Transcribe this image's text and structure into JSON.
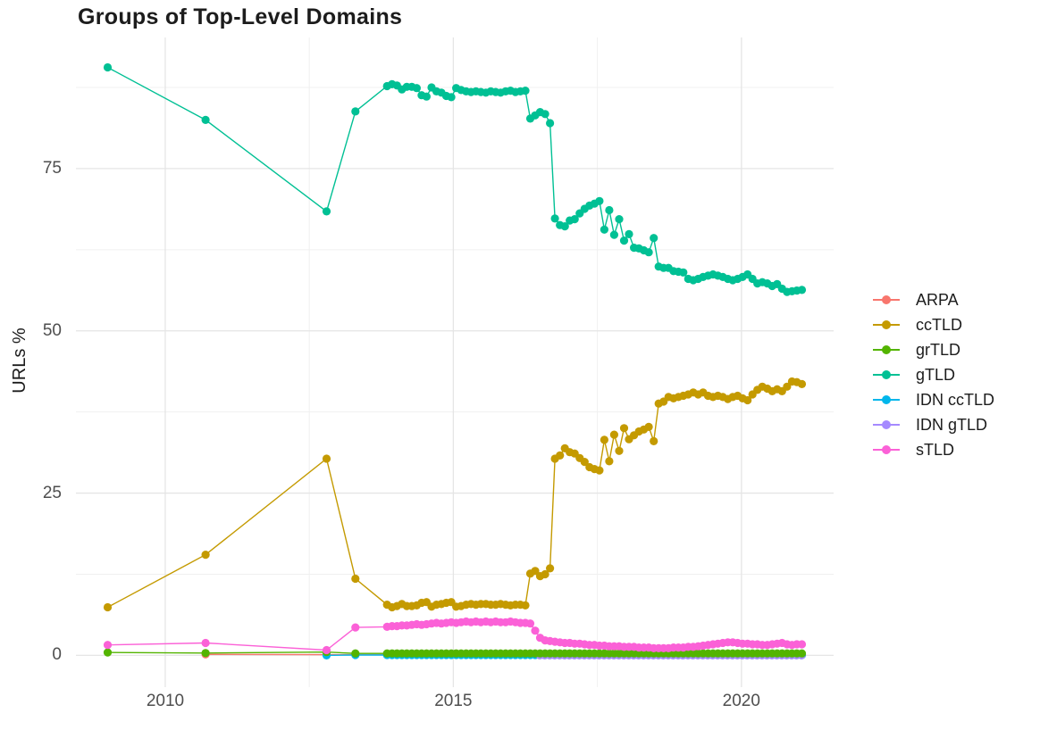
{
  "title": "Groups of Top-Level Domains",
  "chart_data": {
    "type": "line",
    "title": "Groups of Top-Level Domains",
    "xlabel": "",
    "ylabel": "URLs %",
    "xlim": [
      2008.45,
      2021.6
    ],
    "ylim": [
      -4.9,
      95.2
    ],
    "x_ticks": [
      {
        "v": 2010,
        "label": "2010"
      },
      {
        "v": 2015,
        "label": "2015"
      },
      {
        "v": 2020,
        "label": "2020"
      }
    ],
    "x_minor": [
      2012.5,
      2017.5
    ],
    "y_ticks": [
      {
        "v": 0,
        "label": "0"
      },
      {
        "v": 25,
        "label": "25"
      },
      {
        "v": 50,
        "label": "50"
      },
      {
        "v": 75,
        "label": "75"
      }
    ],
    "y_minor": [
      12.5,
      37.5,
      62.5,
      87.5
    ],
    "grid": true,
    "legend_position": "right",
    "grid_major_color": "#e5e5e5",
    "grid_minor_color": "#f0f0f0",
    "tick_text_color": "#4e4e4e",
    "title_color": "#1c1c1c",
    "point_radius": 4.6,
    "line_width": 1.4,
    "draw_order": [
      "ARPA",
      "IDN ccTLD",
      "IDN gTLD",
      "grTLD",
      "ccTLD",
      "gTLD",
      "sTLD"
    ],
    "series": [
      {
        "name": "ARPA",
        "color": "#F8766D",
        "early": [
          [
            2010.7,
            0.15
          ],
          [
            2012.8,
            0.1
          ],
          [
            2013.3,
            0.1
          ]
        ],
        "dense": {
          "x_start": 2013.85,
          "x_step": 0.0857,
          "const": 0.1,
          "n": 85
        }
      },
      {
        "name": "ccTLD",
        "color": "#C49A00",
        "early": [
          [
            2009.0,
            7.4
          ],
          [
            2010.7,
            15.5
          ],
          [
            2012.8,
            30.3
          ],
          [
            2013.3,
            11.8
          ]
        ],
        "dense": {
          "x_start": 2013.85,
          "x_step": 0.0857,
          "values": [
            7.8,
            7.4,
            7.6,
            7.9,
            7.6,
            7.6,
            7.7,
            8.1,
            8.2,
            7.5,
            7.8,
            7.9,
            8.1,
            8.2,
            7.5,
            7.6,
            7.8,
            7.9,
            7.8,
            7.9,
            7.9,
            7.8,
            7.8,
            7.9,
            7.8,
            7.7,
            7.8,
            7.8,
            7.7,
            12.6,
            13.0,
            12.2,
            12.5,
            13.4,
            30.3,
            30.8,
            31.9,
            31.3,
            31.1,
            30.4,
            29.8,
            29.0,
            28.7,
            28.5,
            33.2,
            29.9,
            34.0,
            31.5,
            35.0,
            33.3,
            33.9,
            34.5,
            34.8,
            35.2,
            33.0,
            38.8,
            39.1,
            39.8,
            39.6,
            39.8,
            40.0,
            40.2,
            40.5,
            40.2,
            40.5,
            40.0,
            39.8,
            40.0,
            39.8,
            39.5,
            39.8,
            40.0,
            39.6,
            39.3,
            40.2,
            40.9,
            41.4,
            41.1,
            40.7,
            41.0,
            40.7,
            41.4,
            42.2,
            42.1,
            41.8
          ]
        }
      },
      {
        "name": "grTLD",
        "color": "#53B400",
        "early": [
          [
            2009.0,
            0.45
          ],
          [
            2010.7,
            0.35
          ],
          [
            2012.8,
            0.5
          ],
          [
            2013.3,
            0.3
          ]
        ],
        "dense": {
          "x_start": 2013.85,
          "x_step": 0.0857,
          "const": 0.3,
          "n": 85
        }
      },
      {
        "name": "gTLD",
        "color": "#00C094",
        "early": [
          [
            2009.0,
            90.6
          ],
          [
            2010.7,
            82.5
          ],
          [
            2012.8,
            68.4
          ],
          [
            2013.3,
            83.8
          ]
        ],
        "dense": {
          "x_start": 2013.85,
          "x_step": 0.0857,
          "values": [
            87.7,
            88.0,
            87.8,
            87.2,
            87.6,
            87.6,
            87.4,
            86.3,
            86.1,
            87.5,
            86.9,
            86.7,
            86.2,
            86.0,
            87.4,
            87.1,
            86.9,
            86.8,
            86.9,
            86.8,
            86.7,
            86.9,
            86.8,
            86.7,
            86.9,
            87.0,
            86.8,
            86.9,
            87.0,
            82.7,
            83.2,
            83.7,
            83.4,
            82.0,
            67.3,
            66.3,
            66.1,
            67.0,
            67.2,
            68.1,
            68.8,
            69.3,
            69.6,
            70.0,
            65.6,
            68.6,
            64.8,
            67.2,
            63.9,
            64.9,
            62.8,
            62.7,
            62.4,
            62.1,
            64.3,
            59.9,
            59.7,
            59.7,
            59.2,
            59.1,
            59.0,
            58.0,
            57.8,
            58.0,
            58.3,
            58.5,
            58.7,
            58.5,
            58.3,
            58.0,
            57.8,
            58.0,
            58.3,
            58.7,
            58.0,
            57.3,
            57.5,
            57.3,
            56.9,
            57.2,
            56.5,
            56.0,
            56.1,
            56.2,
            56.3
          ]
        }
      },
      {
        "name": "IDN ccTLD",
        "color": "#00B6EB",
        "early": [
          [
            2012.8,
            0.0
          ],
          [
            2013.3,
            0.05
          ]
        ],
        "dense": {
          "x_start": 2013.85,
          "x_step": 0.0857,
          "const": 0.05,
          "n": 85
        }
      },
      {
        "name": "IDN gTLD",
        "color": "#A58AFF",
        "early": [],
        "dense": {
          "x_start": 2016.5,
          "x_step": 0.0857,
          "const": 0.0,
          "n": 54
        }
      },
      {
        "name": "sTLD",
        "color": "#FB61D7",
        "early": [
          [
            2009.0,
            1.6
          ],
          [
            2010.7,
            1.9
          ],
          [
            2012.8,
            0.8
          ],
          [
            2013.3,
            4.3
          ]
        ],
        "dense": {
          "x_start": 2013.85,
          "x_step": 0.0857,
          "values": [
            4.4,
            4.5,
            4.5,
            4.6,
            4.6,
            4.7,
            4.8,
            4.7,
            4.8,
            4.9,
            5.0,
            4.9,
            5.0,
            5.1,
            5.0,
            5.1,
            5.2,
            5.1,
            5.2,
            5.1,
            5.2,
            5.1,
            5.2,
            5.1,
            5.1,
            5.2,
            5.1,
            5.0,
            5.0,
            4.9,
            3.8,
            2.7,
            2.3,
            2.2,
            2.1,
            2.0,
            1.9,
            1.9,
            1.8,
            1.8,
            1.7,
            1.6,
            1.6,
            1.5,
            1.5,
            1.4,
            1.4,
            1.4,
            1.3,
            1.3,
            1.3,
            1.2,
            1.2,
            1.2,
            1.1,
            1.1,
            1.1,
            1.1,
            1.2,
            1.2,
            1.2,
            1.3,
            1.3,
            1.4,
            1.5,
            1.6,
            1.7,
            1.8,
            1.9,
            2.0,
            2.0,
            1.9,
            1.8,
            1.8,
            1.7,
            1.7,
            1.6,
            1.6,
            1.7,
            1.8,
            1.9,
            1.7,
            1.6,
            1.7,
            1.7
          ]
        }
      }
    ]
  }
}
